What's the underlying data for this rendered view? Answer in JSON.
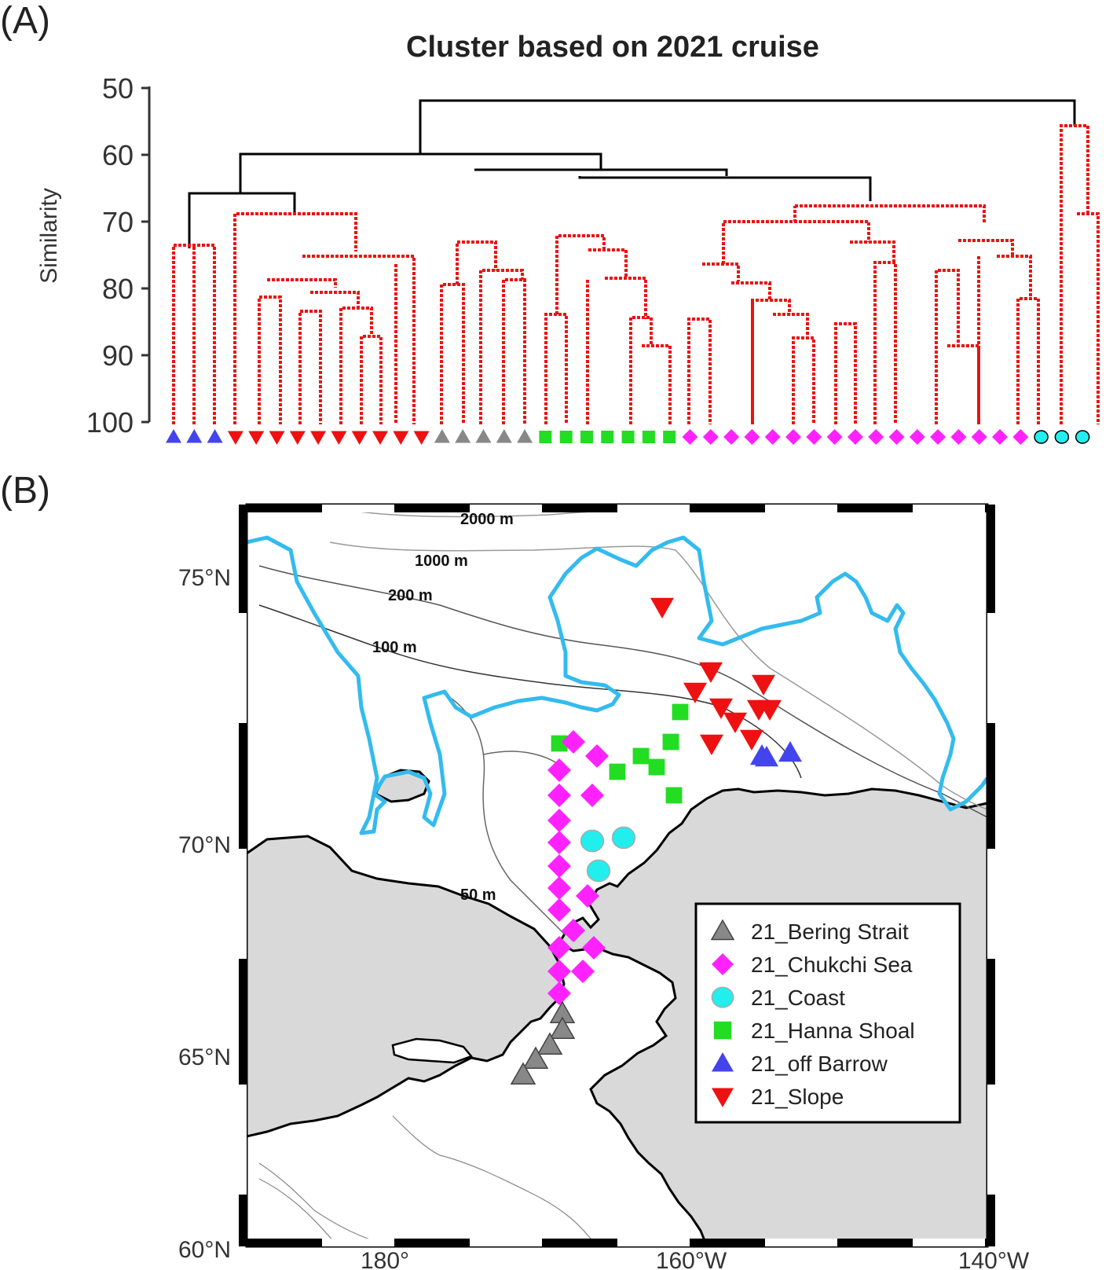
{
  "panel_a": {
    "label": "(A)",
    "title": "Cluster based on 2021 cruise",
    "ylabel": "Similarity",
    "yticks": [
      "50",
      "60",
      "70",
      "80",
      "90",
      "100"
    ],
    "groups": [
      {
        "name": "off Barrow",
        "marker": "triangle-up",
        "color": "#4444ee",
        "count": 3
      },
      {
        "name": "Slope",
        "marker": "triangle-down",
        "color": "#ee1111",
        "count": 10
      },
      {
        "name": "Bering Strait",
        "marker": "triangle-up",
        "color": "#888888",
        "count": 5
      },
      {
        "name": "Hanna Shoal",
        "marker": "square",
        "color": "#22dd22",
        "count": 7
      },
      {
        "name": "Chukchi Sea",
        "marker": "diamond",
        "color": "#ff22ff",
        "count": 17
      },
      {
        "name": "Coast",
        "marker": "circle",
        "color": "#22eeee",
        "count": 3
      }
    ]
  },
  "panel_b": {
    "label": "(B)",
    "lat_labels": [
      "75°N",
      "70°N",
      "65°N",
      "60°N"
    ],
    "lon_labels": [
      "180°",
      "160°W",
      "140°W"
    ],
    "contour_labels": [
      "2000 m",
      "1000 m",
      "200 m",
      "100 m",
      "50 m"
    ],
    "legend": [
      {
        "label": "21_Bering Strait",
        "marker": "triangle-up",
        "color": "#888888"
      },
      {
        "label": "21_Chukchi Sea",
        "marker": "diamond",
        "color": "#ff22ff"
      },
      {
        "label": "21_Coast",
        "marker": "circle",
        "color": "#22eeee"
      },
      {
        "label": "21_Hanna Shoal",
        "marker": "square",
        "color": "#22dd22"
      },
      {
        "label": "21_off Barrow",
        "marker": "triangle-up",
        "color": "#4444ee"
      },
      {
        "label": "21_Slope",
        "marker": "triangle-down",
        "color": "#ee1111"
      }
    ],
    "colors": {
      "land": "#d9d9d9",
      "ice_edge": "#33bbee",
      "coastline": "#000000"
    }
  }
}
